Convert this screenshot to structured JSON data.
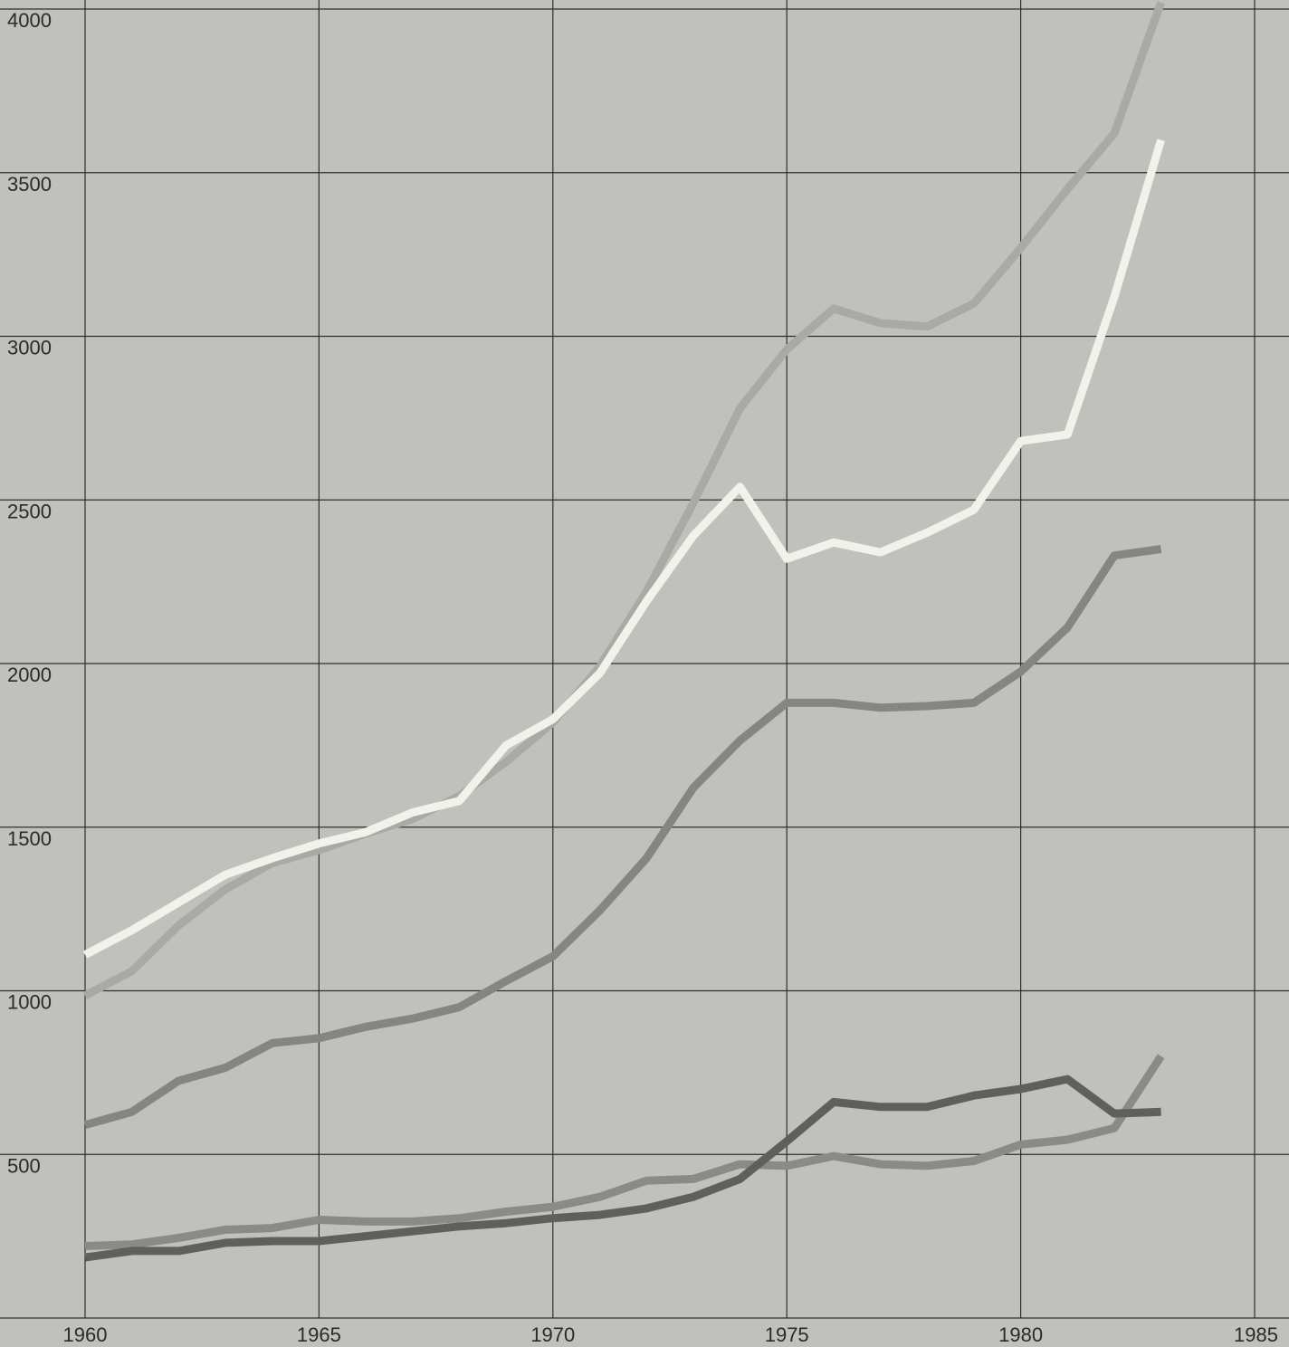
{
  "chart_data": {
    "type": "line",
    "title": "",
    "xlabel": "",
    "ylabel": "",
    "xlim": [
      1960,
      1985
    ],
    "ylim": [
      0,
      4000
    ],
    "grid": true,
    "x_ticks": [
      "1960",
      "1965",
      "1970",
      "1975",
      "1980",
      "1985"
    ],
    "y_ticks": [
      "500",
      "1000",
      "1500",
      "2000",
      "2500",
      "3000",
      "3500",
      "4000"
    ],
    "x": [
      1960,
      1961,
      1962,
      1963,
      1964,
      1965,
      1966,
      1967,
      1968,
      1969,
      1970,
      1971,
      1972,
      1973,
      1974,
      1975,
      1976,
      1977,
      1978,
      1979,
      1980,
      1981,
      1982,
      1983
    ],
    "series": [
      {
        "color": "#a9a9a6",
        "values": [
          985,
          1060,
          1200,
          1310,
          1390,
          1430,
          1480,
          1525,
          1595,
          1700,
          1820,
          1990,
          2220,
          2490,
          2780,
          2960,
          3085,
          3040,
          3030,
          3100,
          3270,
          3450,
          3620,
          4020
        ]
      },
      {
        "color": "#f3f2ea",
        "values": [
          1110,
          1185,
          1270,
          1355,
          1405,
          1450,
          1485,
          1545,
          1580,
          1750,
          1830,
          1970,
          2190,
          2390,
          2540,
          2320,
          2370,
          2340,
          2400,
          2470,
          2680,
          2700,
          3120,
          3600
        ]
      },
      {
        "color": "#858583",
        "values": [
          590,
          630,
          725,
          765,
          840,
          855,
          890,
          915,
          950,
          1030,
          1105,
          1245,
          1405,
          1620,
          1765,
          1880,
          1880,
          1865,
          1870,
          1880,
          1975,
          2110,
          2330,
          2350
        ]
      },
      {
        "color": "#8a8a88",
        "values": [
          220,
          225,
          245,
          270,
          275,
          300,
          295,
          295,
          305,
          325,
          340,
          370,
          420,
          425,
          470,
          465,
          495,
          470,
          465,
          480,
          530,
          545,
          580,
          800
        ]
      },
      {
        "color": "#5f5f5d",
        "values": [
          185,
          205,
          205,
          230,
          235,
          235,
          250,
          265,
          280,
          290,
          305,
          315,
          335,
          370,
          425,
          540,
          660,
          645,
          645,
          680,
          700,
          730,
          625,
          630
        ]
      }
    ]
  }
}
